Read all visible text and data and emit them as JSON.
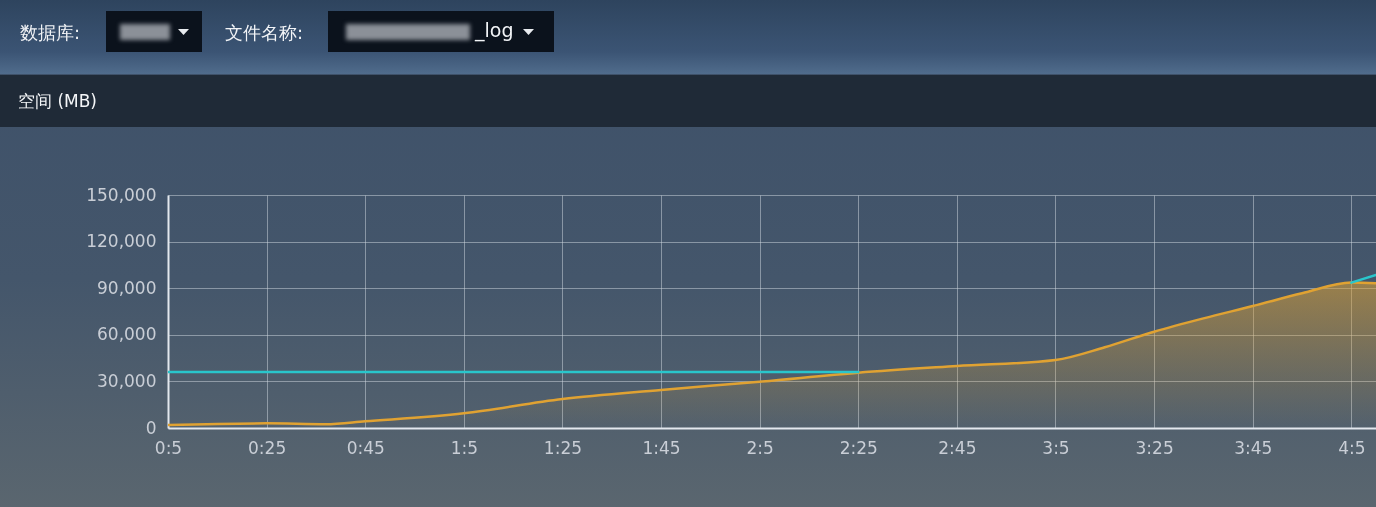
{
  "chart_data": {
    "type": "area",
    "title": "空间 (MB)",
    "annotations": [
      "数据库:",
      "文件名称:",
      "_log"
    ],
    "xlim": [
      0.0833,
      4.1667
    ],
    "xticks": [
      {
        "value": 0.0833,
        "label": "0:5"
      },
      {
        "value": 0.4167,
        "label": "0:25"
      },
      {
        "value": 0.75,
        "label": "0:45"
      },
      {
        "value": 1.0833,
        "label": "1:5"
      },
      {
        "value": 1.4167,
        "label": "1:25"
      },
      {
        "value": 1.75,
        "label": "1:45"
      },
      {
        "value": 2.0833,
        "label": "2:5"
      },
      {
        "value": 2.4167,
        "label": "2:25"
      },
      {
        "value": 2.75,
        "label": "2:45"
      },
      {
        "value": 3.0833,
        "label": "3:5"
      },
      {
        "value": 3.4167,
        "label": "3:25"
      },
      {
        "value": 3.75,
        "label": "3:45"
      },
      {
        "value": 4.0833,
        "label": "4:5"
      }
    ],
    "ylim": [
      0,
      150000
    ],
    "yticks": [
      0,
      {
        "value": 30000,
        "label": "30,000"
      },
      {
        "value": 60000,
        "label": "60,000"
      },
      {
        "value": 90000,
        "label": "90,000"
      },
      {
        "value": 120000,
        "label": "120,000"
      },
      {
        "value": 150000,
        "label": "150,000"
      }
    ],
    "grid": true,
    "series": [
      {
        "color": "#e0a232",
        "x": [
          0.0833,
          0.4167,
          0.6167,
          0.75,
          1.0833,
          1.4167,
          1.75,
          2.0833,
          2.4167,
          2.75,
          3.0833,
          3.25,
          3.4167,
          3.5833,
          3.75,
          3.9167,
          4.0833,
          4.1667
        ],
        "values": [
          2000,
          3000,
          2400,
          4300,
          9500,
          18700,
          24500,
          29800,
          35600,
          39900,
          43800,
          52000,
          62000,
          70600,
          78500,
          86700,
          93600,
          93200
        ]
      },
      {
        "type": "line",
        "color": "#29c6cc",
        "x": [
          0.0833,
          2.4167,
          2.75,
          4.0833,
          4.1667
        ],
        "values": [
          36000,
          36000,
          null,
          93600,
          98500
        ]
      }
    ]
  }
}
